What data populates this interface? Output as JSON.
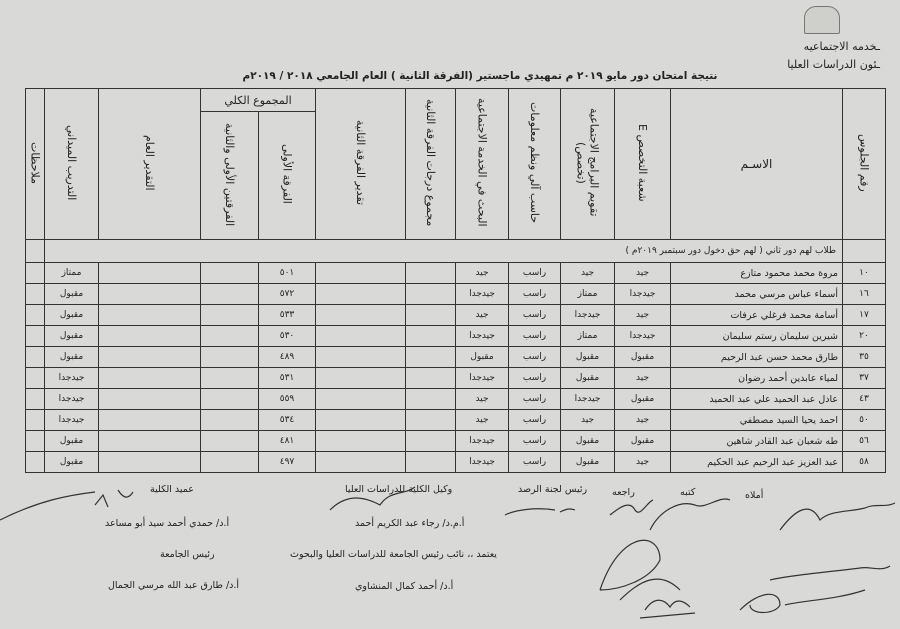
{
  "header": {
    "line1": "ـخدمه الاجتماعيه",
    "line2": "ـئون الدراسات العليا"
  },
  "title": "نتيجة امتحان دور مايو ٢٠١٩ م تمهيدي ماجستير (الفرقة الثانية ) العام الجامعي ٢٠١٨ / ٢٠١٩م",
  "columns": {
    "seat": "رقم الجلوس",
    "name": "الاسـم",
    "division": "شعبة التخصص E",
    "program_eval": "تقويم البرامج الاجتماعية (تخصص)",
    "computer": "حاسب آلي ونظم معلومات",
    "research": "البحث في الخدمة الاجتماعية",
    "second_total": "مجموع درجات الفرقة الثانية",
    "second_grade": "تقدير الفرقة الثانية",
    "grand_total": "المجموع الكلي",
    "first_year": "الفرقة الأولى",
    "both_years": "الفرقتين الأولى والثانية",
    "overall_grade": "التقدير العام",
    "field_training": "التدريب الميداني",
    "notes": "ملاحظات"
  },
  "section_note": "طلاب لهم دور ثاني ( لهم حق دخول دور سبتمبر ٢٠١٩م )",
  "rows": [
    {
      "seat": "١٠",
      "name": "مروة محمد محمود متازع",
      "division": "جيد",
      "program_eval": "جيد",
      "computer": "راسب",
      "research": "جيد",
      "first_year": "٥٠١",
      "field_training": "ممتاز"
    },
    {
      "seat": "١٦",
      "name": "أسماء عباس مرسي محمد",
      "division": "جيدجدا",
      "program_eval": "ممتاز",
      "computer": "راسب",
      "research": "جيدجدا",
      "first_year": "٥٧٢",
      "field_training": "مقبول"
    },
    {
      "seat": "١٧",
      "name": "أسامة محمد فرغلي عرفات",
      "division": "جيد",
      "program_eval": "جيدجدا",
      "computer": "راسب",
      "research": "جيد",
      "first_year": "٥٣٣",
      "field_training": "مقبول"
    },
    {
      "seat": "٢٠",
      "name": "شيرين سليمان رستم سليمان",
      "division": "جيدجدا",
      "program_eval": "ممتاز",
      "computer": "راسب",
      "research": "جيدجدا",
      "first_year": "٥٣٠",
      "field_training": "مقبول"
    },
    {
      "seat": "٣٥",
      "name": "طارق محمد حسن عبد الرحيم",
      "division": "مقبول",
      "program_eval": "مقبول",
      "computer": "راسب",
      "research": "مقبول",
      "first_year": "٤٨٩",
      "field_training": "مقبول"
    },
    {
      "seat": "٣٧",
      "name": "لمياء عابدين أحمد رضوان",
      "division": "جيد",
      "program_eval": "مقبول",
      "computer": "راسب",
      "research": "جيدجدا",
      "first_year": "٥٣١",
      "field_training": "جيدجدا"
    },
    {
      "seat": "٤٣",
      "name": "عادل عبد الحميد علي عبد الحميد",
      "division": "مقبول",
      "program_eval": "جيدجدا",
      "computer": "راسب",
      "research": "جيد",
      "first_year": "٥٥٩",
      "field_training": "جيدجدا"
    },
    {
      "seat": "٥٠",
      "name": "احمد يحيا السيد مصطفي",
      "division": "جيد",
      "program_eval": "جيد",
      "computer": "راسب",
      "research": "جيد",
      "first_year": "٥٣٤",
      "field_training": "جيدجدا"
    },
    {
      "seat": "٥٦",
      "name": "طه شعبان عبد القادر شاهين",
      "division": "مقبول",
      "program_eval": "مقبول",
      "computer": "راسب",
      "research": "جيدجدا",
      "first_year": "٤٨١",
      "field_training": "مقبول"
    },
    {
      "seat": "٥٨",
      "name": "عبد العزيز عبد الرحيم عبد الحكيم",
      "division": "جيد",
      "program_eval": "مقبول",
      "computer": "راسب",
      "research": "جيدجدا",
      "first_year": "٤٩٧",
      "field_training": "مقبول"
    }
  ],
  "signatures": {
    "dictated": "أملاه",
    "written": "كتبه",
    "reviewed": "راجعه",
    "committee_head": "رئيس لجنة الرصد",
    "vice_dean_title": "وكيل الكلية للدراسات العليا",
    "vice_dean_name": "أ.م.د/ رجاء عبد الكريم أحمد",
    "dean_title": "عميد الكلية",
    "dean_name": "أ.د/ حمدي أحمد سيد أبو مساعد",
    "vp_title": "يعتمد ،، نائب رئيس الجامعة للدراسات العليا والبحوث",
    "vp_name": "أ.د/ أحمد كمال المنشاوي",
    "president_title": "رئيس الجامعة",
    "president_name": "أ.د/ طارق عبد الله مرسي الجمال"
  }
}
